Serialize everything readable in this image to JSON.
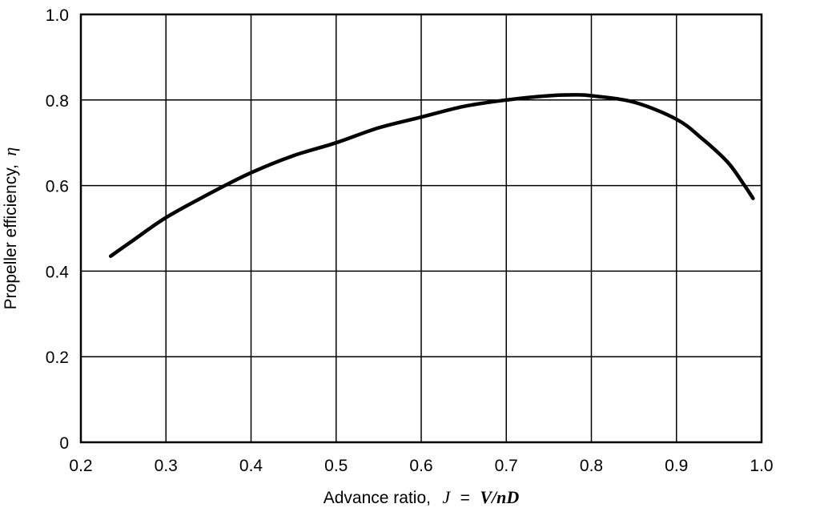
{
  "chart_data": {
    "type": "line",
    "title": "",
    "xlabel": {
      "text": "Advance ratio,",
      "symbol": "J",
      "equals": "=",
      "expression": "V/nD"
    },
    "ylabel": {
      "text": "Propeller efficiency,",
      "symbol": "η"
    },
    "xlim": [
      0.2,
      1.0
    ],
    "ylim": [
      0,
      1.0
    ],
    "x_ticks": [
      0.2,
      0.3,
      0.4,
      0.5,
      0.6,
      0.7,
      0.8,
      0.9,
      1.0
    ],
    "y_ticks": [
      0,
      0.2,
      0.4,
      0.6,
      0.8,
      1.0
    ],
    "x_tick_labels": [
      "0.2",
      "0.3",
      "0.4",
      "0.5",
      "0.6",
      "0.7",
      "0.8",
      "0.9",
      "1.0"
    ],
    "y_tick_labels": [
      "0",
      "0.2",
      "0.4",
      "0.6",
      "0.8",
      "1.0"
    ],
    "grid": true,
    "series": [
      {
        "x": [
          0.235,
          0.26,
          0.3,
          0.35,
          0.4,
          0.45,
          0.5,
          0.55,
          0.6,
          0.65,
          0.7,
          0.75,
          0.78,
          0.8,
          0.85,
          0.9,
          0.93,
          0.96,
          0.98,
          0.99
        ],
        "y": [
          0.435,
          0.47,
          0.525,
          0.58,
          0.63,
          0.67,
          0.7,
          0.735,
          0.76,
          0.785,
          0.8,
          0.81,
          0.812,
          0.81,
          0.795,
          0.755,
          0.71,
          0.655,
          0.6,
          0.57
        ]
      }
    ]
  }
}
